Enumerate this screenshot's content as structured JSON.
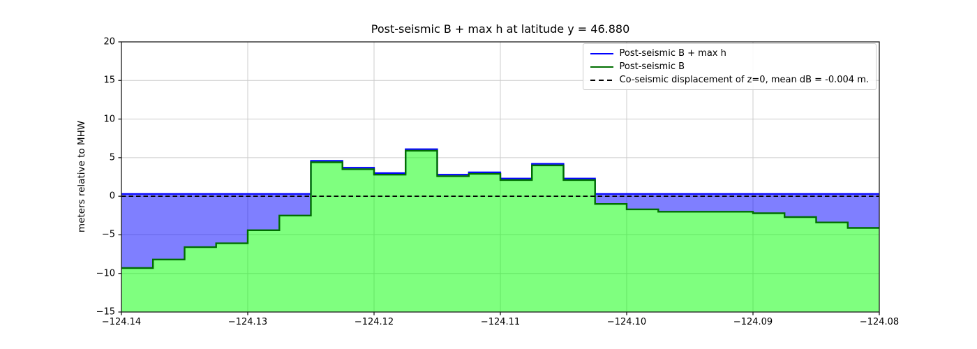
{
  "chart_data": {
    "type": "area",
    "title": "Post-seismic B + max h at latitude y = 46.880",
    "ylabel": "meters relative to MHW",
    "xlabel": "",
    "xlim": [
      -124.14,
      -124.08
    ],
    "ylim": [
      -15,
      20
    ],
    "grid": true,
    "legend_position": "upper right",
    "x_start": -124.14,
    "x_step": 0.0025,
    "xtick_values": [
      -124.14,
      -124.13,
      -124.12,
      -124.11,
      -124.1,
      -124.09,
      -124.08
    ],
    "xtick_labels": [
      "−124.14",
      "−124.13",
      "−124.12",
      "−124.11",
      "−124.10",
      "−124.09",
      "−124.08"
    ],
    "ytick_values": [
      20,
      15,
      10,
      5,
      0,
      -5,
      -10,
      -15
    ],
    "ytick_labels": [
      "20",
      "15",
      "10",
      "5",
      "0",
      "−5",
      "−10",
      "−15"
    ],
    "series": [
      {
        "name": "Post-seismic B + max h",
        "color": "#0000ff",
        "style": "solid",
        "values": [
          0.3,
          0.3,
          0.3,
          0.3,
          0.3,
          0.3,
          4.6,
          3.7,
          3.0,
          6.1,
          2.8,
          3.1,
          2.3,
          4.2,
          2.3,
          0.3,
          0.3,
          0.3,
          0.3,
          0.3,
          0.3,
          0.3,
          0.3,
          0.3
        ]
      },
      {
        "name": "Post-seismic B",
        "color": "#006e00",
        "style": "solid",
        "values": [
          -9.3,
          -8.2,
          -6.6,
          -6.1,
          -4.4,
          -2.5,
          4.4,
          3.5,
          2.8,
          5.9,
          2.6,
          2.9,
          2.1,
          4.0,
          2.1,
          -1.0,
          -1.7,
          -2.0,
          -2.0,
          -2.0,
          -2.2,
          -2.7,
          -3.4,
          -4.1
        ]
      },
      {
        "name": "Co-seismic displacement of z=0, mean dB = -0.004 m.",
        "color": "#000000",
        "style": "dashed",
        "values": [
          0
        ]
      }
    ],
    "zero_line_y": 0,
    "colors": {
      "blue_line": "#0000ff",
      "blue_fill": "#0000ff",
      "blue_fill_opacity": 0.5,
      "green_line": "#006e00",
      "green_fill": "#00ff00",
      "green_fill_opacity": 0.5,
      "dashed_line": "#000000",
      "grid": "#cccccc",
      "spine": "#1a1a1a",
      "background": "#ffffff"
    }
  }
}
